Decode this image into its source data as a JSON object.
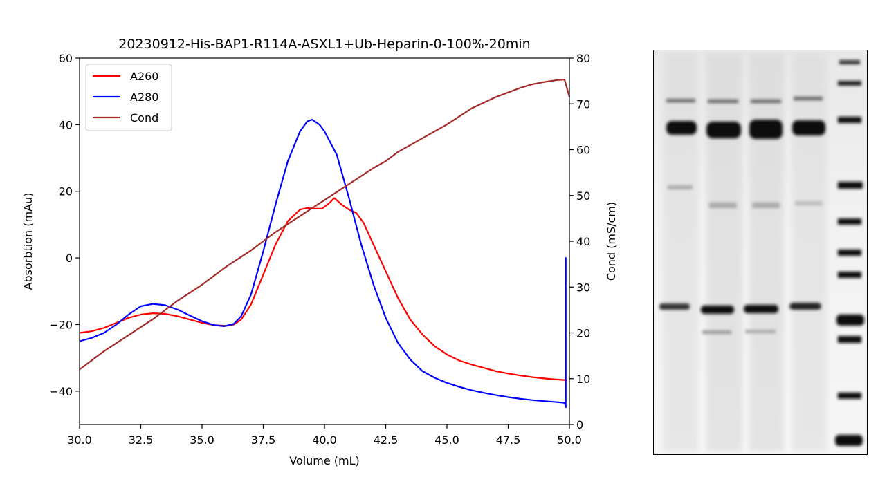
{
  "chart_data": {
    "type": "line",
    "title": "20230912-His-BAP1-R114A-ASXL1+Ub-Heparin-0-100%-20min",
    "xlabel": "Volume (mL)",
    "ylabel": "Absorbtion (mAu)",
    "y2label": "Cond (mS/cm)",
    "xlim": [
      30,
      50
    ],
    "ylim": [
      -50,
      60
    ],
    "y2lim": [
      0,
      80
    ],
    "x_ticks": [
      "30.0",
      "32.5",
      "35.0",
      "37.5",
      "40.0",
      "42.5",
      "45.0",
      "47.5",
      "50.0"
    ],
    "y_ticks": [
      "−40",
      "−20",
      "0",
      "20",
      "40",
      "60"
    ],
    "y2_ticks": [
      "0",
      "10",
      "20",
      "30",
      "40",
      "50",
      "60",
      "70",
      "80"
    ],
    "legend_position": "top-left",
    "grid": false,
    "series": [
      {
        "name": "A260",
        "axis": "left",
        "color": "#ff0000",
        "points": [
          [
            30.0,
            -22.5
          ],
          [
            30.5,
            -22.0
          ],
          [
            31.0,
            -21.0
          ],
          [
            31.5,
            -19.5
          ],
          [
            32.0,
            -18.0
          ],
          [
            32.5,
            -17.0
          ],
          [
            33.0,
            -16.6
          ],
          [
            33.5,
            -16.8
          ],
          [
            34.0,
            -17.5
          ],
          [
            34.5,
            -18.5
          ],
          [
            35.0,
            -19.5
          ],
          [
            35.5,
            -20.2
          ],
          [
            36.0,
            -20.4
          ],
          [
            36.3,
            -20.0
          ],
          [
            36.6,
            -18.5
          ],
          [
            37.0,
            -14.0
          ],
          [
            37.5,
            -5.0
          ],
          [
            38.0,
            4.0
          ],
          [
            38.5,
            11.0
          ],
          [
            39.0,
            14.5
          ],
          [
            39.3,
            15.0
          ],
          [
            39.6,
            14.8
          ],
          [
            39.9,
            14.8
          ],
          [
            40.2,
            16.5
          ],
          [
            40.4,
            18.0
          ],
          [
            40.7,
            16.0
          ],
          [
            41.0,
            14.5
          ],
          [
            41.3,
            13.5
          ],
          [
            41.6,
            10.5
          ],
          [
            42.0,
            4.0
          ],
          [
            42.5,
            -4.0
          ],
          [
            43.0,
            -12.0
          ],
          [
            43.5,
            -18.5
          ],
          [
            44.0,
            -23.0
          ],
          [
            44.5,
            -26.5
          ],
          [
            45.0,
            -29.0
          ],
          [
            45.5,
            -30.8
          ],
          [
            46.0,
            -32.0
          ],
          [
            46.5,
            -33.0
          ],
          [
            47.0,
            -34.0
          ],
          [
            47.5,
            -34.7
          ],
          [
            48.0,
            -35.3
          ],
          [
            48.5,
            -35.8
          ],
          [
            49.0,
            -36.2
          ],
          [
            49.5,
            -36.5
          ],
          [
            49.9,
            -36.7
          ]
        ]
      },
      {
        "name": "A280",
        "axis": "left",
        "color": "#0000ff",
        "points": [
          [
            30.0,
            -25.0
          ],
          [
            30.5,
            -24.0
          ],
          [
            31.0,
            -22.5
          ],
          [
            31.5,
            -20.0
          ],
          [
            32.0,
            -17.0
          ],
          [
            32.5,
            -14.5
          ],
          [
            33.0,
            -13.8
          ],
          [
            33.5,
            -14.2
          ],
          [
            34.0,
            -15.5
          ],
          [
            34.5,
            -17.3
          ],
          [
            35.0,
            -19.0
          ],
          [
            35.5,
            -20.2
          ],
          [
            35.9,
            -20.5
          ],
          [
            36.3,
            -19.8
          ],
          [
            36.6,
            -17.5
          ],
          [
            37.0,
            -11.0
          ],
          [
            37.5,
            2.0
          ],
          [
            38.0,
            16.0
          ],
          [
            38.5,
            29.0
          ],
          [
            39.0,
            38.0
          ],
          [
            39.3,
            41.0
          ],
          [
            39.5,
            41.5
          ],
          [
            39.8,
            40.0
          ],
          [
            40.0,
            38.0
          ],
          [
            40.5,
            31.0
          ],
          [
            41.0,
            18.0
          ],
          [
            41.5,
            4.0
          ],
          [
            42.0,
            -8.0
          ],
          [
            42.5,
            -18.0
          ],
          [
            43.0,
            -25.5
          ],
          [
            43.5,
            -30.5
          ],
          [
            44.0,
            -34.0
          ],
          [
            44.5,
            -36.0
          ],
          [
            45.0,
            -37.5
          ],
          [
            45.5,
            -38.7
          ],
          [
            46.0,
            -39.7
          ],
          [
            46.5,
            -40.5
          ],
          [
            47.0,
            -41.2
          ],
          [
            47.5,
            -41.8
          ],
          [
            48.0,
            -42.3
          ],
          [
            48.5,
            -42.7
          ],
          [
            49.0,
            -43.0
          ],
          [
            49.5,
            -43.3
          ],
          [
            49.8,
            -43.5
          ],
          [
            49.85,
            -44.5
          ],
          [
            49.85,
            0.0
          ],
          [
            49.85,
            -45.0
          ]
        ]
      },
      {
        "name": "Cond",
        "axis": "right",
        "color": "#a52a2a",
        "points": [
          [
            30.0,
            12.0
          ],
          [
            31.0,
            16.0
          ],
          [
            32.0,
            19.5
          ],
          [
            33.0,
            23.0
          ],
          [
            34.0,
            27.0
          ],
          [
            35.0,
            30.5
          ],
          [
            36.0,
            34.5
          ],
          [
            37.0,
            38.0
          ],
          [
            38.0,
            42.0
          ],
          [
            39.0,
            45.5
          ],
          [
            40.0,
            49.0
          ],
          [
            41.0,
            52.5
          ],
          [
            42.0,
            56.0
          ],
          [
            42.5,
            57.5
          ],
          [
            43.0,
            59.5
          ],
          [
            44.0,
            62.5
          ],
          [
            45.0,
            65.5
          ],
          [
            46.0,
            69.0
          ],
          [
            47.0,
            71.5
          ],
          [
            48.0,
            73.5
          ],
          [
            48.5,
            74.3
          ],
          [
            49.0,
            74.8
          ],
          [
            49.5,
            75.2
          ],
          [
            49.8,
            75.3
          ],
          [
            50.0,
            71.5
          ]
        ]
      }
    ]
  }
}
